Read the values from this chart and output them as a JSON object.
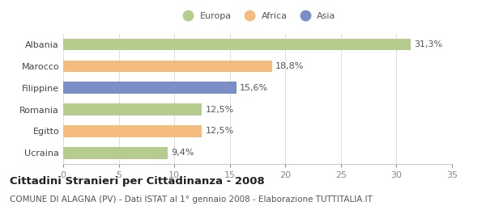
{
  "categories": [
    "Albania",
    "Marocco",
    "Filippine",
    "Romania",
    "Egitto",
    "Ucraina"
  ],
  "values": [
    31.3,
    18.8,
    15.6,
    12.5,
    12.5,
    9.4
  ],
  "labels": [
    "31,3%",
    "18,8%",
    "15,6%",
    "12,5%",
    "12,5%",
    "9,4%"
  ],
  "colors": [
    "#b5cc8e",
    "#f5bc80",
    "#7b8ec8",
    "#b5cc8e",
    "#f5bc80",
    "#b5cc8e"
  ],
  "legend": [
    {
      "label": "Europa",
      "color": "#b5cc8e"
    },
    {
      "label": "Africa",
      "color": "#f5bc80"
    },
    {
      "label": "Asia",
      "color": "#7b8ec8"
    }
  ],
  "xlim": [
    0,
    35
  ],
  "xticks": [
    0,
    5,
    10,
    15,
    20,
    25,
    30,
    35
  ],
  "title": "Cittadini Stranieri per Cittadinanza - 2008",
  "subtitle": "COMUNE DI ALAGNA (PV) - Dati ISTAT al 1° gennaio 2008 - Elaborazione TUTTITALIA.IT",
  "background_color": "#ffffff",
  "bar_height": 0.55,
  "label_fontsize": 8,
  "tick_fontsize": 8,
  "title_fontsize": 9.5,
  "subtitle_fontsize": 7.5
}
